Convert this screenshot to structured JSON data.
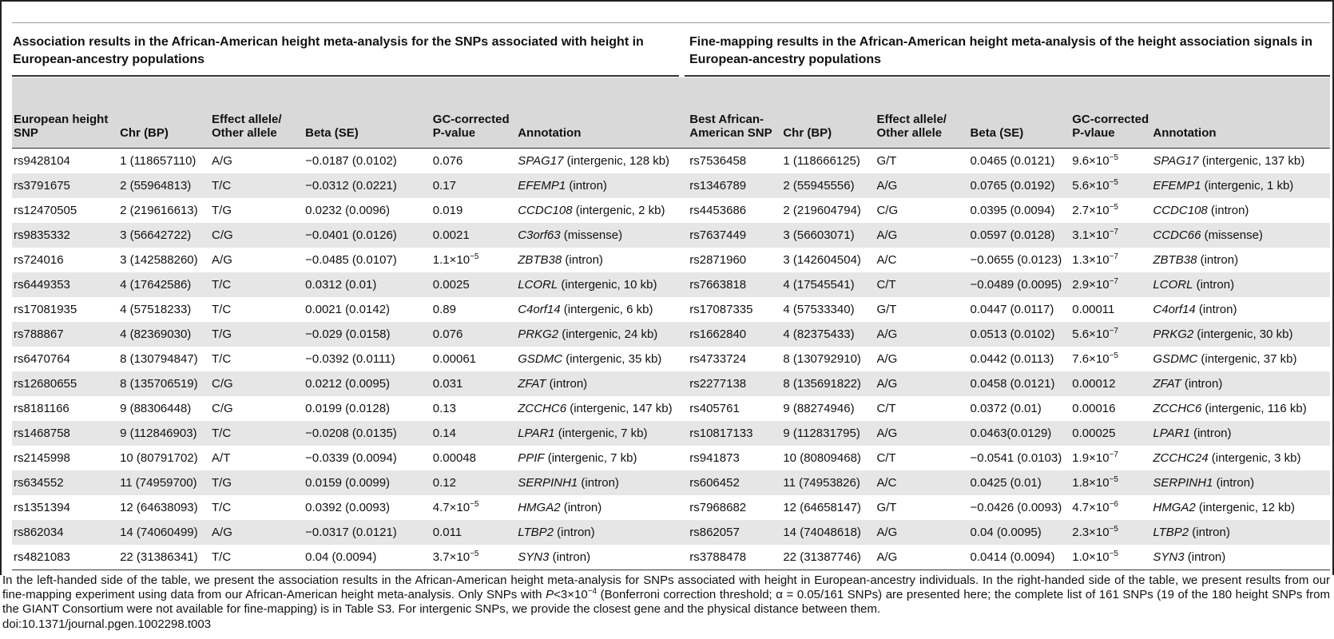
{
  "left_title": "Association results in the African-American height meta-analysis for the SNPs associated with height in European-ancestry populations",
  "right_title": "Fine-mapping results in the African-American height meta-analysis of the height association signals in European-ancestry populations",
  "left_headers": [
    "European height SNP",
    "Chr (BP)",
    "Effect allele/ Other allele",
    "Beta (SE)",
    "GC-corrected P-value",
    "Annotation"
  ],
  "right_headers": [
    "Best African-American SNP",
    "Chr (BP)",
    "Effect allele/ Other allele",
    "Beta (SE)",
    "GC-corrected P-vlaue",
    "Annotation"
  ],
  "rows": [
    {
      "l": {
        "snp": "rs9428104",
        "chr": "1 (118657110)",
        "allele": "A/G",
        "beta": "−0.0187 (0.0102)",
        "p": "0.076",
        "gene": "SPAG17",
        "ann": " (intergenic, 128 kb)"
      },
      "r": {
        "snp": "rs7536458",
        "chr": "1 (118666125)",
        "allele": "G/T",
        "beta": "0.0465 (0.0121)",
        "p": "9.6×10",
        "pexp": "−5",
        "gene": "SPAG17",
        "ann": " (intergenic, 137 kb)"
      }
    },
    {
      "l": {
        "snp": "rs3791675",
        "chr": "2 (55964813)",
        "allele": "T/C",
        "beta": "−0.0312 (0.0221)",
        "p": "0.17",
        "gene": "EFEMP1",
        "ann": " (intron)"
      },
      "r": {
        "snp": "rs1346789",
        "chr": "2 (55945556)",
        "allele": "A/G",
        "beta": "0.0765 (0.0192)",
        "p": "5.6×10",
        "pexp": "−5",
        "gene": "EFEMP1",
        "ann": " (intergenic, 1 kb)"
      }
    },
    {
      "l": {
        "snp": "rs12470505",
        "chr": "2 (219616613)",
        "allele": "T/G",
        "beta": "0.0232 (0.0096)",
        "p": "0.019",
        "gene": "CCDC108",
        "ann": " (intergenic, 2 kb)"
      },
      "r": {
        "snp": "rs4453686",
        "chr": "2 (219604794)",
        "allele": "C/G",
        "beta": "0.0395 (0.0094)",
        "p": "2.7×10",
        "pexp": "−5",
        "gene": "CCDC108",
        "ann": " (intron)"
      }
    },
    {
      "l": {
        "snp": "rs9835332",
        "chr": "3 (56642722)",
        "allele": "C/G",
        "beta": "−0.0401 (0.0126)",
        "p": "0.0021",
        "gene": "C3orf63",
        "ann": " (missense)"
      },
      "r": {
        "snp": "rs7637449",
        "chr": "3 (56603071)",
        "allele": "A/G",
        "beta": "0.0597 (0.0128)",
        "p": "3.1×10",
        "pexp": "−7",
        "gene": "CCDC66",
        "ann": " (missense)"
      }
    },
    {
      "l": {
        "snp": "rs724016",
        "chr": "3 (142588260)",
        "allele": "A/G",
        "beta": "−0.0485 (0.0107)",
        "p": "1.1×10",
        "pexp": "−5",
        "gene": "ZBTB38",
        "ann": " (intron)"
      },
      "r": {
        "snp": "rs2871960",
        "chr": "3 (142604504)",
        "allele": "A/C",
        "beta": "−0.0655 (0.0123)",
        "p": "1.3×10",
        "pexp": "−7",
        "gene": "ZBTB38",
        "ann": " (intron)"
      }
    },
    {
      "l": {
        "snp": "rs6449353",
        "chr": "4 (17642586)",
        "allele": "T/C",
        "beta": "0.0312 (0.01)",
        "p": "0.0025",
        "gene": "LCORL",
        "ann": " (intergenic, 10 kb)"
      },
      "r": {
        "snp": "rs7663818",
        "chr": "4 (17545541)",
        "allele": "C/T",
        "beta": "−0.0489 (0.0095)",
        "p": "2.9×10",
        "pexp": "−7",
        "gene": "LCORL",
        "ann": " (intron)"
      }
    },
    {
      "l": {
        "snp": "rs17081935",
        "chr": "4 (57518233)",
        "allele": "T/C",
        "beta": "0.0021 (0.0142)",
        "p": "0.89",
        "gene": "C4orf14",
        "ann": " (intergenic, 6 kb)"
      },
      "r": {
        "snp": "rs17087335",
        "chr": "4 (57533340)",
        "allele": "G/T",
        "beta": "0.0447 (0.0117)",
        "p": "0.00011",
        "gene": "C4orf14",
        "ann": " (intron)"
      }
    },
    {
      "l": {
        "snp": "rs788867",
        "chr": "4 (82369030)",
        "allele": "T/G",
        "beta": "−0.029 (0.0158)",
        "p": "0.076",
        "gene": "PRKG2",
        "ann": " (intergenic, 24 kb)"
      },
      "r": {
        "snp": "rs1662840",
        "chr": "4 (82375433)",
        "allele": "A/G",
        "beta": "0.0513 (0.0102)",
        "p": "5.6×10",
        "pexp": "−7",
        "gene": "PRKG2",
        "ann": " (intergenic, 30 kb)"
      }
    },
    {
      "l": {
        "snp": "rs6470764",
        "chr": "8 (130794847)",
        "allele": "T/C",
        "beta": "−0.0392 (0.0111)",
        "p": "0.00061",
        "gene": "GSDMC",
        "ann": " (intergenic, 35 kb)"
      },
      "r": {
        "snp": "rs4733724",
        "chr": "8 (130792910)",
        "allele": "A/G",
        "beta": "0.0442 (0.0113)",
        "p": "7.6×10",
        "pexp": "−5",
        "gene": "GSDMC",
        "ann": " (intergenic, 37 kb)"
      }
    },
    {
      "l": {
        "snp": "rs12680655",
        "chr": "8 (135706519)",
        "allele": "C/G",
        "beta": "0.0212 (0.0095)",
        "p": "0.031",
        "gene": "ZFAT",
        "ann": " (intron)"
      },
      "r": {
        "snp": "rs2277138",
        "chr": "8 (135691822)",
        "allele": "A/G",
        "beta": "0.0458 (0.0121)",
        "p": "0.00012",
        "gene": "ZFAT",
        "ann": " (intron)"
      }
    },
    {
      "l": {
        "snp": "rs8181166",
        "chr": "9 (88306448)",
        "allele": "C/G",
        "beta": "0.0199 (0.0128)",
        "p": "0.13",
        "gene": "ZCCHC6",
        "ann": " (intergenic, 147 kb)"
      },
      "r": {
        "snp": "rs405761",
        "chr": "9 (88274946)",
        "allele": "C/T",
        "beta": "0.0372 (0.01)",
        "p": "0.00016",
        "gene": "ZCCHC6",
        "ann": " (intergenic, 116 kb)"
      }
    },
    {
      "l": {
        "snp": "rs1468758",
        "chr": "9 (112846903)",
        "allele": "T/C",
        "beta": "−0.0208 (0.0135)",
        "p": "0.14",
        "gene": "LPAR1",
        "ann": " (intergenic, 7 kb)"
      },
      "r": {
        "snp": "rs10817133",
        "chr": "9 (112831795)",
        "allele": "A/G",
        "beta": "0.0463(0.0129)",
        "p": "0.00025",
        "gene": "LPAR1",
        "ann": " (intron)"
      }
    },
    {
      "l": {
        "snp": "rs2145998",
        "chr": "10 (80791702)",
        "allele": "A/T",
        "beta": "−0.0339 (0.0094)",
        "p": "0.00048",
        "gene": "PPIF",
        "ann": " (intergenic, 7 kb)"
      },
      "r": {
        "snp": "rs941873",
        "chr": "10 (80809468)",
        "allele": "C/T",
        "beta": "−0.0541 (0.0103)",
        "p": "1.9×10",
        "pexp": "−7",
        "gene": "ZCCHC24",
        "ann": " (intergenic, 3 kb)"
      }
    },
    {
      "l": {
        "snp": "rs634552",
        "chr": "11 (74959700)",
        "allele": "T/G",
        "beta": "0.0159 (0.0099)",
        "p": "0.12",
        "gene": "SERPINH1",
        "ann": " (intron)"
      },
      "r": {
        "snp": "rs606452",
        "chr": "11 (74953826)",
        "allele": "A/C",
        "beta": "0.0425 (0.01)",
        "p": "1.8×10",
        "pexp": "−5",
        "gene": "SERPINH1",
        "ann": " (intron)"
      }
    },
    {
      "l": {
        "snp": "rs1351394",
        "chr": "12 (64638093)",
        "allele": "T/C",
        "beta": "0.0392 (0.0093)",
        "p": "4.7×10",
        "pexp": "−5",
        "gene": "HMGA2",
        "ann": " (intron)"
      },
      "r": {
        "snp": "rs7968682",
        "chr": "12 (64658147)",
        "allele": "G/T",
        "beta": "−0.0426 (0.0093)",
        "p": "4.7×10",
        "pexp": "−6",
        "gene": "HMGA2",
        "ann": " (intergenic, 12 kb)"
      }
    },
    {
      "l": {
        "snp": "rs862034",
        "chr": "14 (74060499)",
        "allele": "A/G",
        "beta": "−0.0317 (0.0121)",
        "p": "0.011",
        "gene": "LTBP2",
        "ann": " (intron)"
      },
      "r": {
        "snp": "rs862057",
        "chr": "14 (74048618)",
        "allele": "A/G",
        "beta": "0.04 (0.0095)",
        "p": "2.3×10",
        "pexp": "−5",
        "gene": "LTBP2",
        "ann": " (intron)"
      }
    },
    {
      "l": {
        "snp": "rs4821083",
        "chr": "22 (31386341)",
        "allele": "T/C",
        "beta": "0.04 (0.0094)",
        "p": "3.7×10",
        "pexp": "−5",
        "gene": "SYN3",
        "ann": " (intron)"
      },
      "r": {
        "snp": "rs3788478",
        "chr": "22 (31387746)",
        "allele": "A/G",
        "beta": "0.0414 (0.0094)",
        "p": "1.0×10",
        "pexp": "−5",
        "gene": "SYN3",
        "ann": " (intron)"
      }
    }
  ],
  "footnote": {
    "part1": "In the left-handed side of the table, we present the association results in the African-American height meta-analysis for SNPs associated with height in European-ancestry individuals. In the right-handed side of the table, we present results from our fine-mapping experiment using data from our African-American height meta-analysis. Only SNPs with ",
    "p_symbol": "P",
    "part2": "<3×10",
    "exp": "−4",
    "part3": " (Bonferroni correction threshold; α = 0.05/161 SNPs) are presented here; the complete list of 161 SNPs (19 of the 180 height SNPs from the GIANT Consortium were not available for fine-mapping) is in Table S3. For intergenic SNPs, we provide the closest gene and the physical distance between them."
  },
  "doi": "doi:10.1371/journal.pgen.1002298.t003"
}
